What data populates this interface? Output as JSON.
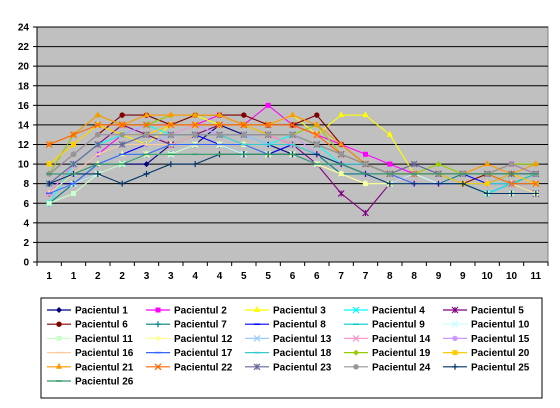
{
  "chart_data": {
    "type": "line",
    "title": "",
    "xlabel": "",
    "ylabel": "",
    "ylim": [
      0,
      24
    ],
    "yticks": [
      0,
      2,
      4,
      6,
      8,
      10,
      12,
      14,
      16,
      18,
      20,
      22,
      24
    ],
    "x": [
      "1",
      "1",
      "2",
      "2",
      "3",
      "3",
      "4",
      "4",
      "5",
      "5",
      "6",
      "6",
      "7",
      "7",
      "8",
      "8",
      "9",
      "9",
      "10",
      "10",
      "11"
    ],
    "grid": true,
    "legend_position": "bottom",
    "plot_background": "#c0c0c0",
    "series": [
      {
        "name": "Pacientul 1",
        "color": "#000080",
        "marker": "diamond",
        "values": [
          8,
          8,
          9,
          10,
          10,
          12,
          12,
          14,
          13,
          12,
          11,
          10,
          10,
          9,
          9,
          8,
          8,
          8,
          7,
          8,
          9
        ]
      },
      {
        "name": "Pacientul 2",
        "color": "#ff00ff",
        "marker": "square",
        "values": [
          7,
          9,
          11,
          13,
          12,
          13,
          14,
          15,
          14,
          16,
          14,
          13,
          12,
          11,
          10,
          9,
          9,
          8,
          9,
          10,
          9
        ]
      },
      {
        "name": "Pacientul 3",
        "color": "#ffff00",
        "marker": "triangle",
        "values": [
          10,
          12,
          14,
          13,
          12,
          14,
          15,
          14,
          14,
          14,
          15,
          13,
          15,
          15,
          13,
          9,
          9,
          8,
          9,
          8,
          9
        ]
      },
      {
        "name": "Pacientul 4",
        "color": "#00ffff",
        "marker": "x",
        "values": [
          6,
          10,
          12,
          13,
          14,
          13,
          14,
          13,
          13,
          12,
          13,
          12,
          10,
          9,
          9,
          8,
          8,
          8,
          7,
          8,
          8
        ]
      },
      {
        "name": "Pacientul 5",
        "color": "#800080",
        "marker": "star",
        "values": [
          7,
          10,
          12,
          14,
          13,
          12,
          13,
          14,
          14,
          13,
          12,
          10,
          7,
          5,
          8,
          9,
          9,
          8,
          8,
          8,
          7
        ]
      },
      {
        "name": "Pacientul 6",
        "color": "#800000",
        "marker": "circle",
        "values": [
          9,
          11,
          13,
          15,
          15,
          14,
          15,
          15,
          15,
          14,
          14,
          15,
          12,
          10,
          9,
          9,
          9,
          8,
          9,
          9,
          9
        ]
      },
      {
        "name": "Pacientul 7",
        "color": "#008080",
        "marker": "plus",
        "values": [
          6,
          8,
          10,
          10,
          11,
          11,
          12,
          12,
          11,
          11,
          12,
          11,
          9,
          9,
          9,
          8,
          8,
          9,
          9,
          9,
          9
        ]
      },
      {
        "name": "Pacientul 8",
        "color": "#0000ff",
        "marker": "dash",
        "values": [
          7,
          9,
          10,
          11,
          12,
          12,
          13,
          12,
          12,
          11,
          12,
          11,
          10,
          10,
          9,
          9,
          9,
          9,
          8,
          9,
          9
        ]
      },
      {
        "name": "Pacientul 9",
        "color": "#00cccc",
        "marker": "dash",
        "values": [
          8,
          9,
          10,
          11,
          11,
          12,
          12,
          12,
          12,
          12,
          12,
          11,
          10,
          9,
          9,
          9,
          9,
          9,
          9,
          8,
          9
        ]
      },
      {
        "name": "Pacientul 10",
        "color": "#ccffff",
        "marker": "x",
        "values": [
          7,
          8,
          9,
          10,
          11,
          11,
          12,
          12,
          11,
          11,
          11,
          10,
          10,
          9,
          8,
          9,
          8,
          8,
          8,
          8,
          8
        ]
      },
      {
        "name": "Pacientul 11",
        "color": "#ccffcc",
        "marker": "square",
        "values": [
          6,
          7,
          9,
          10,
          11,
          11,
          12,
          12,
          12,
          11,
          11,
          10,
          9,
          8,
          8,
          8,
          8,
          8,
          7,
          7,
          7
        ]
      },
      {
        "name": "Pacientul 12",
        "color": "#ffff99",
        "marker": "triangle",
        "values": [
          7,
          9,
          10,
          11,
          11,
          12,
          12,
          12,
          12,
          11,
          11,
          10,
          9,
          8,
          8,
          8,
          8,
          8,
          8,
          8,
          7
        ]
      },
      {
        "name": "Pacientul 13",
        "color": "#99ccff",
        "marker": "x",
        "values": [
          8,
          9,
          11,
          12,
          12,
          13,
          13,
          13,
          13,
          12,
          12,
          11,
          10,
          9,
          9,
          9,
          9,
          8,
          8,
          8,
          8
        ]
      },
      {
        "name": "Pacientul 14",
        "color": "#ff99cc",
        "marker": "x",
        "values": [
          7,
          10,
          12,
          12,
          13,
          13,
          14,
          13,
          13,
          13,
          12,
          11,
          10,
          9,
          9,
          8,
          8,
          8,
          8,
          8,
          8
        ]
      },
      {
        "name": "Pacientul 15",
        "color": "#cc99ff",
        "marker": "circle",
        "values": [
          9,
          11,
          13,
          13,
          14,
          14,
          14,
          13,
          13,
          13,
          13,
          11,
          10,
          9,
          9,
          8,
          8,
          8,
          8,
          8,
          8
        ]
      },
      {
        "name": "Pacientul 16",
        "color": "#ffcc99",
        "marker": "dash",
        "values": [
          8,
          9,
          11,
          12,
          12,
          12,
          13,
          13,
          12,
          12,
          12,
          11,
          10,
          9,
          9,
          8,
          8,
          8,
          8,
          8,
          8
        ]
      },
      {
        "name": "Pacientul 17",
        "color": "#3366ff",
        "marker": "dash",
        "values": [
          7,
          8,
          10,
          11,
          11,
          12,
          12,
          12,
          12,
          11,
          11,
          10,
          10,
          9,
          9,
          8,
          8,
          8,
          8,
          8,
          8
        ]
      },
      {
        "name": "Pacientul 18",
        "color": "#33cccc",
        "marker": "dash",
        "values": [
          8,
          10,
          12,
          12,
          13,
          13,
          13,
          13,
          12,
          12,
          12,
          11,
          10,
          10,
          9,
          9,
          9,
          8,
          8,
          8,
          8
        ]
      },
      {
        "name": "Pacientul 19",
        "color": "#99cc00",
        "marker": "diamond",
        "values": [
          9,
          13,
          15,
          14,
          14,
          15,
          15,
          15,
          14,
          13,
          13,
          14,
          11,
          10,
          9,
          9,
          10,
          9,
          9,
          10,
          10
        ]
      },
      {
        "name": "Pacientul 20",
        "color": "#ffcc00",
        "marker": "square",
        "values": [
          10,
          12,
          14,
          13,
          13,
          14,
          14,
          14,
          14,
          13,
          13,
          12,
          11,
          10,
          9,
          9,
          9,
          8,
          8,
          9,
          8
        ]
      },
      {
        "name": "Pacientul 21",
        "color": "#ff9900",
        "marker": "triangle",
        "values": [
          12,
          13,
          15,
          14,
          15,
          15,
          15,
          15,
          14,
          14,
          15,
          14,
          12,
          10,
          9,
          9,
          9,
          9,
          10,
          9,
          10
        ]
      },
      {
        "name": "Pacientul 22",
        "color": "#ff6600",
        "marker": "x",
        "values": [
          12,
          13,
          14,
          14,
          14,
          14,
          14,
          14,
          14,
          14,
          14,
          13,
          11,
          10,
          9,
          9,
          9,
          9,
          9,
          8,
          8
        ]
      },
      {
        "name": "Pacientul 23",
        "color": "#666699",
        "marker": "star",
        "values": [
          8,
          10,
          12,
          12,
          13,
          13,
          13,
          13,
          13,
          13,
          13,
          12,
          11,
          10,
          9,
          10,
          9,
          9,
          9,
          9,
          9
        ]
      },
      {
        "name": "Pacientul 24",
        "color": "#969696",
        "marker": "circle",
        "values": [
          9,
          11,
          13,
          13,
          13,
          13,
          13,
          13,
          13,
          13,
          13,
          12,
          11,
          10,
          9,
          9,
          9,
          9,
          9,
          10,
          9
        ]
      },
      {
        "name": "Pacientul 25",
        "color": "#003366",
        "marker": "plus",
        "values": [
          8,
          9,
          9,
          8,
          9,
          10,
          10,
          11,
          11,
          11,
          11,
          11,
          10,
          9,
          8,
          8,
          8,
          8,
          7,
          7,
          7
        ]
      },
      {
        "name": "Pacientul 26",
        "color": "#339966",
        "marker": "dash",
        "values": [
          9,
          9,
          10,
          10,
          11,
          11,
          11,
          11,
          11,
          11,
          11,
          10,
          10,
          9,
          9,
          9,
          9,
          9,
          9,
          9,
          9
        ]
      }
    ]
  }
}
